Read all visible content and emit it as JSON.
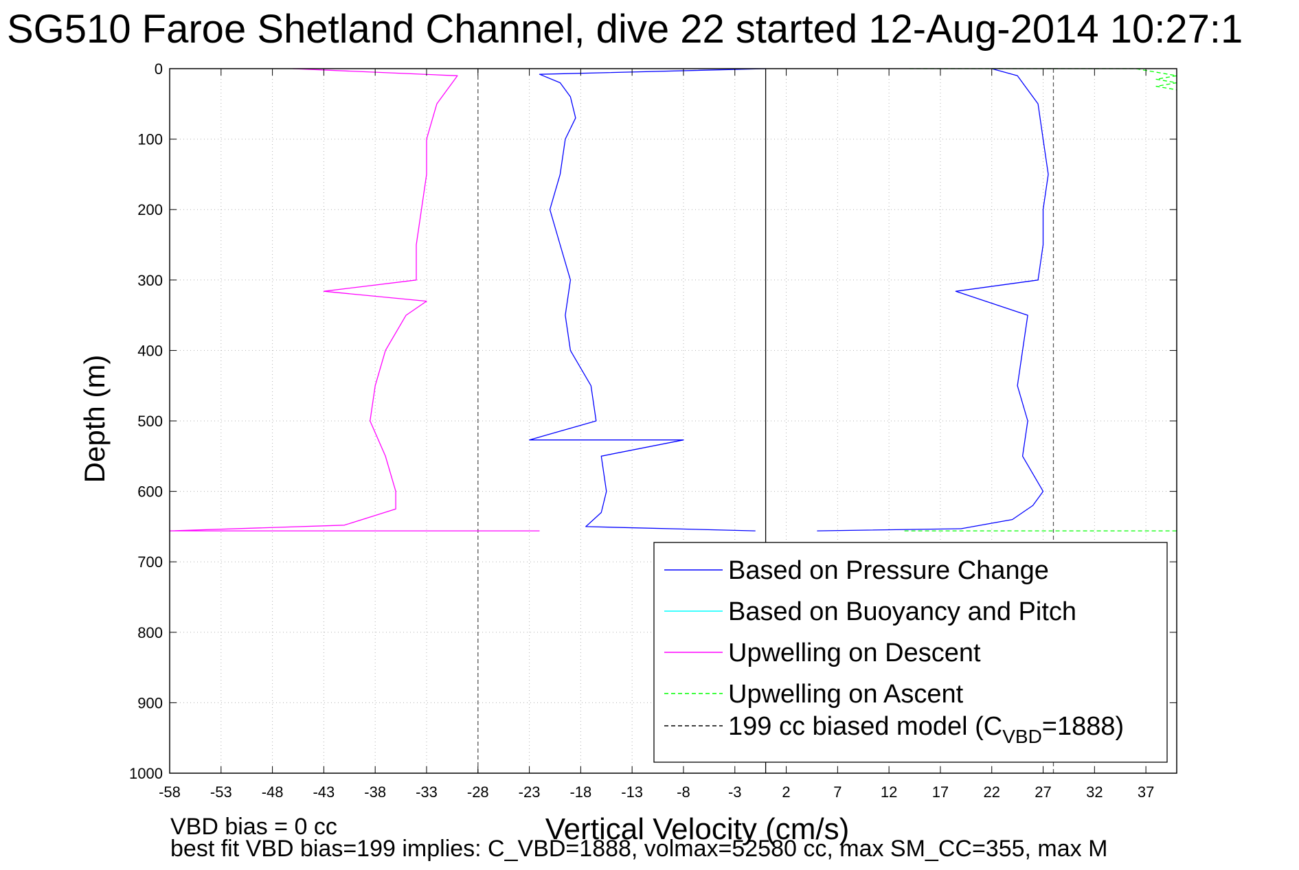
{
  "chart_data": {
    "type": "line",
    "title": "SG510 Faroe Shetland Channel, dive 22 started 12-Aug-2014 10:27:1",
    "xlabel": "Vertical Velocity (cm/s)",
    "ylabel": "Depth (m)",
    "xlim": [
      -58,
      40
    ],
    "ylim": [
      0,
      1000
    ],
    "y_reversed": true,
    "grid": true,
    "xticks": [
      -58,
      -53,
      -48,
      -43,
      -38,
      -33,
      -28,
      -23,
      -18,
      -13,
      -8,
      -3,
      2,
      7,
      12,
      17,
      22,
      27,
      32,
      37
    ],
    "yticks": [
      0,
      100,
      200,
      300,
      400,
      500,
      600,
      700,
      800,
      900,
      1000
    ],
    "legend_position": "bottom-right",
    "legend": [
      {
        "label": "Based on Pressure Change",
        "color": "#0000ff",
        "dash": "solid"
      },
      {
        "label": "Based on Buoyancy and Pitch",
        "color": "#00ffff",
        "dash": "solid"
      },
      {
        "label": "Upwelling on Descent",
        "color": "#ff00ff",
        "dash": "solid"
      },
      {
        "label": "Upwelling on Ascent",
        "color": "#00ff00",
        "dash": "dashed"
      },
      {
        "label_main": "199 cc biased model (C",
        "label_sub": "VBD",
        "label_tail": "=1888)",
        "color": "#000000",
        "dash": "dashed"
      }
    ],
    "series": [
      {
        "name": "Based on Pressure Change (descent)",
        "color": "#0000ff",
        "dash": "solid",
        "points": [
          [
            0,
            0
          ],
          [
            -22,
            8
          ],
          [
            -20,
            20
          ],
          [
            -19,
            40
          ],
          [
            -18.5,
            70
          ],
          [
            -19.5,
            100
          ],
          [
            -20,
            150
          ],
          [
            -21,
            200
          ],
          [
            -20,
            250
          ],
          [
            -19,
            300
          ],
          [
            -19.5,
            350
          ],
          [
            -19,
            400
          ],
          [
            -17,
            450
          ],
          [
            -16.5,
            500
          ],
          [
            -23,
            527
          ],
          [
            -8,
            527
          ],
          [
            -16,
            550
          ],
          [
            -15.5,
            600
          ],
          [
            -16,
            630
          ],
          [
            -17.5,
            650
          ],
          [
            -1,
            656
          ]
        ]
      },
      {
        "name": "Based on Pressure Change (ascent)",
        "color": "#0000ff",
        "dash": "solid",
        "points": [
          [
            5,
            656
          ],
          [
            19,
            653
          ],
          [
            24,
            640
          ],
          [
            26,
            620
          ],
          [
            27,
            600
          ],
          [
            25,
            550
          ],
          [
            25.5,
            500
          ],
          [
            24.5,
            450
          ],
          [
            25,
            400
          ],
          [
            25.5,
            350
          ],
          [
            18.5,
            316
          ],
          [
            26.5,
            300
          ],
          [
            27,
            250
          ],
          [
            27,
            200
          ],
          [
            27.5,
            150
          ],
          [
            27,
            100
          ],
          [
            26.5,
            50
          ],
          [
            24.5,
            10
          ],
          [
            22,
            0
          ]
        ]
      },
      {
        "name": "Upwelling on Descent",
        "color": "#ff00ff",
        "dash": "solid",
        "points": [
          [
            -46,
            0
          ],
          [
            -30,
            10
          ],
          [
            -31,
            30
          ],
          [
            -32,
            50
          ],
          [
            -33,
            100
          ],
          [
            -33,
            150
          ],
          [
            -33.5,
            200
          ],
          [
            -34,
            250
          ],
          [
            -34,
            300
          ],
          [
            -43,
            316
          ],
          [
            -33,
            330
          ],
          [
            -35,
            350
          ],
          [
            -37,
            400
          ],
          [
            -38,
            450
          ],
          [
            -38.5,
            500
          ],
          [
            -37,
            550
          ],
          [
            -36,
            600
          ],
          [
            -36,
            625
          ],
          [
            -41,
            648
          ],
          [
            -58,
            656
          ],
          [
            -22,
            656
          ]
        ]
      },
      {
        "name": "Upwelling on Ascent",
        "color": "#00ff00",
        "dash": "dashed",
        "points": [
          [
            13.5,
            656
          ],
          [
            40,
            656
          ]
        ]
      },
      {
        "name": "Upwelling on Ascent (surface)",
        "color": "#00ff00",
        "dash": "dashed",
        "points": [
          [
            14,
            0
          ],
          [
            36,
            0
          ],
          [
            38,
            5
          ],
          [
            40,
            10
          ],
          [
            38,
            15
          ],
          [
            40,
            20
          ],
          [
            38,
            25
          ],
          [
            40,
            30
          ]
        ]
      },
      {
        "name": "199 cc biased model (descent)",
        "color": "#555555",
        "dash": "dashed",
        "points": [
          [
            -28,
            0
          ],
          [
            -28,
            1000
          ]
        ]
      },
      {
        "name": "199 cc biased model (ascent)",
        "color": "#555555",
        "dash": "dashed",
        "points": [
          [
            28,
            0
          ],
          [
            28,
            1000
          ]
        ]
      },
      {
        "name": "zero line",
        "color": "#000000",
        "dash": "solid",
        "points": [
          [
            0,
            0
          ],
          [
            0,
            1000
          ]
        ]
      }
    ]
  },
  "annotations": {
    "vbd_bias": "VBD bias = 0 cc",
    "best_fit": "best fit VBD bias=199 implies: C_VBD=1888, volmax=52580 cc, max SM_CC=355, max M"
  }
}
